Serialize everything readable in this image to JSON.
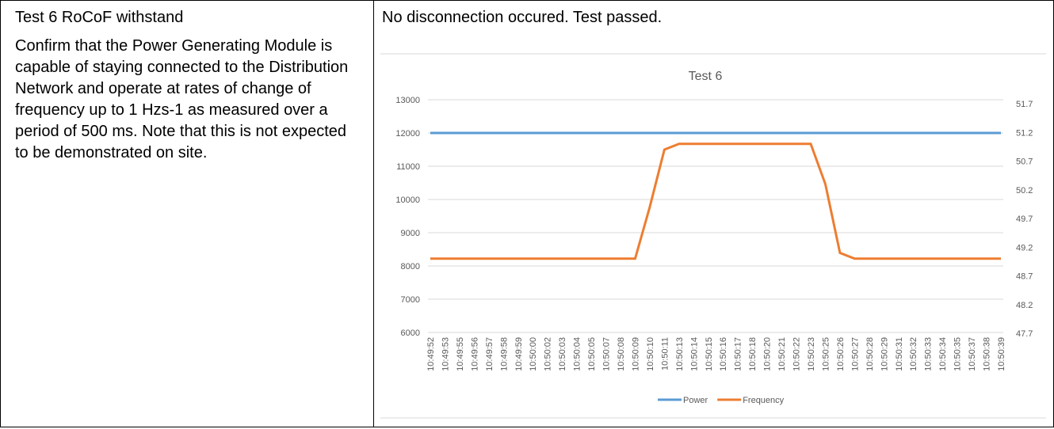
{
  "table": {
    "rows": [
      [
        "Test 6 RoCoF withstand",
        "No disconnection occured. Test passed."
      ]
    ],
    "description": "Confirm that the Power Generating Module is capable of staying connected to the Distribution Network and operate at rates of change of frequency up to 1 Hzs-1 as measured over a period of 500 ms. Note that this is not expected to be demonstrated on site."
  },
  "chart_data": {
    "type": "line",
    "title": "Test 6",
    "categories": [
      "10:49:52",
      "10:49:53",
      "10:49:55",
      "10:49:56",
      "10:49:57",
      "10:49:58",
      "10:49:59",
      "10:50:00",
      "10:50:02",
      "10:50:03",
      "10:50:04",
      "10:50:05",
      "10:50:07",
      "10:50:08",
      "10:50:09",
      "10:50:10",
      "10:50:11",
      "10:50:13",
      "10:50:14",
      "10:50:15",
      "10:50:16",
      "10:50:17",
      "10:50:18",
      "10:50:20",
      "10:50:21",
      "10:50:22",
      "10:50:23",
      "10:50:25",
      "10:50:26",
      "10:50:27",
      "10:50:28",
      "10:50:29",
      "10:50:31",
      "10:50:32",
      "10:50:33",
      "10:50:34",
      "10:50:35",
      "10:50:37",
      "10:50:38",
      "10:50:39"
    ],
    "series": [
      {
        "name": "Power",
        "color": "#5b9bd5",
        "values": [
          12000,
          12000,
          12000,
          12000,
          12000,
          12000,
          12000,
          12000,
          12000,
          12000,
          12000,
          12000,
          12000,
          12000,
          12000,
          12000,
          12000,
          12000,
          12000,
          12000,
          12000,
          12000,
          12000,
          12000,
          12000,
          12000,
          12000,
          12000,
          12000,
          12000,
          12000,
          12000,
          12000,
          12000,
          12000,
          12000,
          12000,
          12000,
          12000,
          12000
        ]
      },
      {
        "name": "Frequency",
        "color": "#ed7d31",
        "axis": "y2",
        "values": [
          49.0,
          49.0,
          49.0,
          49.0,
          49.0,
          49.0,
          49.0,
          49.0,
          49.0,
          49.0,
          49.0,
          49.0,
          49.0,
          49.0,
          49.0,
          49.9,
          50.9,
          51.0,
          51.0,
          51.0,
          51.0,
          51.0,
          51.0,
          51.0,
          51.0,
          51.0,
          51.0,
          50.3,
          49.1,
          49.0,
          49.0,
          49.0,
          49.0,
          49.0,
          49.0,
          49.0,
          49.0,
          49.0,
          49.0,
          49.0
        ]
      }
    ],
    "ylim": [
      6000,
      13000
    ],
    "yticks": [
      6000,
      7000,
      8000,
      9000,
      10000,
      11000,
      12000,
      13000
    ],
    "y2lim": [
      47.7,
      51.7
    ],
    "y2ticks": [
      47.7,
      48.2,
      48.7,
      49.2,
      49.7,
      50.2,
      50.7,
      51.2,
      51.7
    ],
    "grid": true,
    "legend": "bottom"
  }
}
